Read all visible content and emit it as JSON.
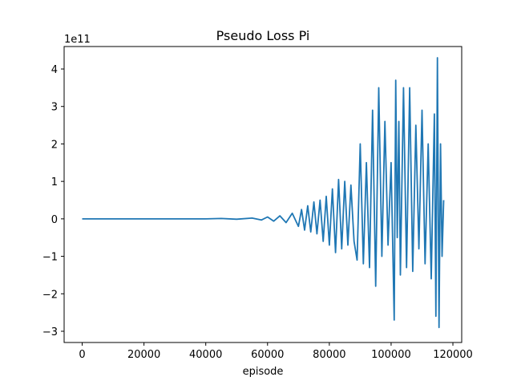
{
  "chart_data": {
    "type": "line",
    "title": "Pseudo Loss Pi",
    "xlabel": "episode",
    "ylabel": "",
    "y_offset_text": "1e11",
    "y_scale": 100000000000,
    "xlim": [
      -5850,
      122850
    ],
    "ylim": [
      -3.3,
      4.6
    ],
    "x_ticks": [
      0,
      20000,
      40000,
      60000,
      80000,
      100000,
      120000
    ],
    "x_tick_labels": [
      "0",
      "20000",
      "40000",
      "60000",
      "80000",
      "100000",
      "120000"
    ],
    "y_ticks": [
      -3,
      -2,
      -1,
      0,
      1,
      2,
      3,
      4
    ],
    "y_tick_labels": [
      "−3",
      "−2",
      "−1",
      "0",
      "1",
      "2",
      "3",
      "4"
    ],
    "grid": false,
    "legend": "none",
    "series": [
      {
        "color": "#1f77b4",
        "x": [
          0,
          40000,
          45000,
          50000,
          55000,
          58000,
          60000,
          62000,
          64000,
          66000,
          68000,
          70000,
          71000,
          72000,
          73000,
          74000,
          75000,
          76000,
          77000,
          78000,
          79000,
          80000,
          81000,
          82000,
          83000,
          84000,
          85000,
          86000,
          87000,
          88000,
          89000,
          90000,
          91000,
          92000,
          93000,
          94000,
          95000,
          96000,
          97000,
          98000,
          99000,
          100000,
          101000,
          101500,
          102000,
          102500,
          103000,
          104000,
          105000,
          106000,
          107000,
          108000,
          109000,
          110000,
          111000,
          112000,
          113000,
          114000,
          114500,
          115000,
          115500,
          116000,
          116500,
          117000
        ],
        "y": [
          0,
          0,
          0.01,
          -0.01,
          0.02,
          -0.03,
          0.05,
          -0.06,
          0.08,
          -0.1,
          0.15,
          -0.2,
          0.25,
          -0.3,
          0.35,
          -0.35,
          0.45,
          -0.4,
          0.5,
          -0.6,
          0.6,
          -0.7,
          0.8,
          -0.9,
          1.05,
          -0.8,
          1.0,
          -0.7,
          0.9,
          -0.6,
          -1.1,
          2.0,
          -1.2,
          1.5,
          -1.3,
          2.9,
          -1.8,
          3.5,
          -1.0,
          2.6,
          -0.7,
          1.5,
          -2.7,
          3.7,
          -0.5,
          2.6,
          -1.5,
          3.5,
          -1.3,
          3.5,
          -1.4,
          2.5,
          -0.8,
          2.9,
          -1.2,
          2.0,
          -1.6,
          2.8,
          -2.6,
          4.3,
          -2.9,
          2.0,
          -1.0,
          0.5
        ]
      }
    ]
  }
}
